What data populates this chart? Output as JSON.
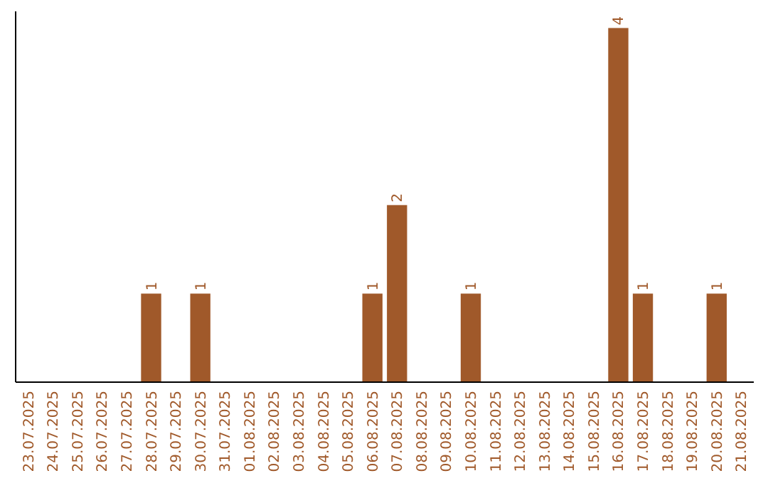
{
  "chart_data": {
    "type": "bar",
    "categories": [
      "23.07.2025",
      "24.07.2025",
      "25.07.2025",
      "26.07.2025",
      "27.07.2025",
      "28.07.2025",
      "29.07.2025",
      "30.07.2025",
      "31.07.2025",
      "01.08.2025",
      "02.08.2025",
      "03.08.2025",
      "04.08.2025",
      "05.08.2025",
      "06.08.2025",
      "07.08.2025",
      "08.08.2025",
      "09.08.2025",
      "10.08.2025",
      "11.08.2025",
      "12.08.2025",
      "13.08.2025",
      "14.08.2025",
      "15.08.2025",
      "16.08.2025",
      "17.08.2025",
      "18.08.2025",
      "19.08.2025",
      "20.08.2025",
      "21.08.2025"
    ],
    "values": [
      0,
      0,
      0,
      0,
      0,
      1,
      0,
      1,
      0,
      0,
      0,
      0,
      0,
      0,
      1,
      2,
      0,
      0,
      1,
      0,
      0,
      0,
      0,
      0,
      4,
      1,
      0,
      0,
      1,
      0
    ],
    "value_labels": [
      null,
      null,
      null,
      null,
      null,
      "1",
      null,
      "1",
      null,
      null,
      null,
      null,
      null,
      null,
      "1",
      "2",
      null,
      null,
      "1",
      null,
      null,
      null,
      null,
      null,
      "4",
      "1",
      null,
      null,
      "1",
      null
    ],
    "color": "#a0592a",
    "tick_labels": "x",
    "grid": false
  }
}
